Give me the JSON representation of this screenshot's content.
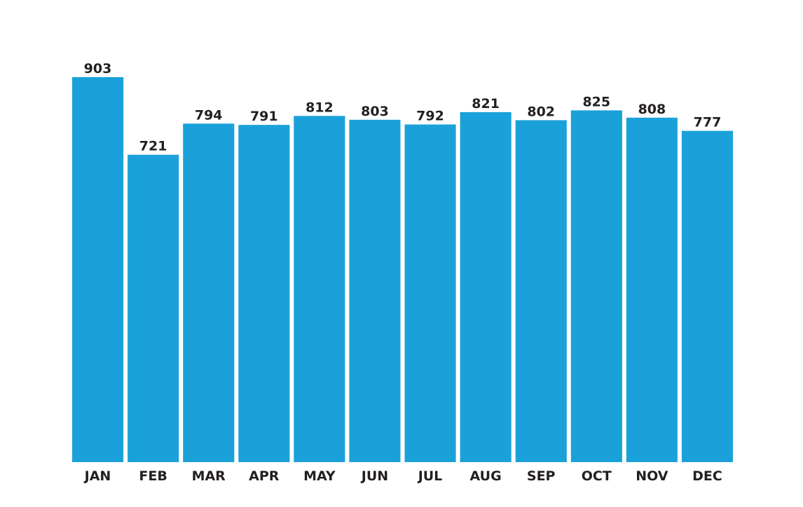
{
  "chart_data": {
    "type": "bar",
    "categories": [
      "JAN",
      "FEB",
      "MAR",
      "APR",
      "MAY",
      "JUN",
      "JUL",
      "AUG",
      "SEP",
      "OCT",
      "NOV",
      "DEC"
    ],
    "values": [
      903,
      721,
      794,
      791,
      812,
      803,
      792,
      821,
      802,
      825,
      808,
      777
    ],
    "title": "",
    "xlabel": "",
    "ylabel": "",
    "ylim": [
      0,
      903
    ],
    "grid": false,
    "legend": "none",
    "bar_color": "#1aa1da",
    "text_color": "#231f20"
  }
}
